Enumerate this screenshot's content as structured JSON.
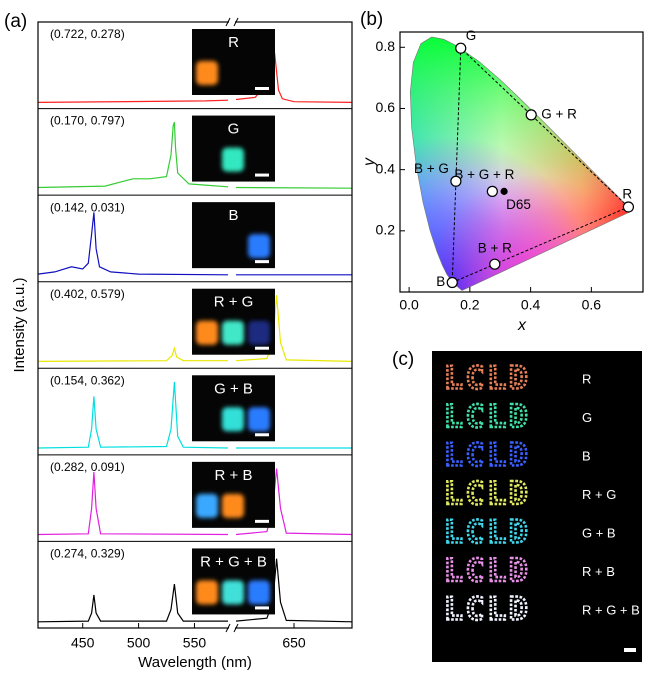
{
  "chart_data": [
    {
      "type": "stacked-spectra",
      "label": "(a)",
      "xlabel": "Wavelength (nm)",
      "ylabel": "Intensity (a.u.)",
      "xlim": [
        410,
        680
      ],
      "xbreak": [
        580,
        620
      ],
      "xticks": [
        450,
        500,
        550,
        650
      ],
      "ylim": [
        0,
        1
      ],
      "panels": [
        {
          "coords": "(0.722, 0.278)",
          "inset_label": "R",
          "color": "#ff2020",
          "inset_colors": [
            "#ff8a1a",
            null,
            null
          ],
          "x": [
            410,
            560,
            580,
            600,
            620,
            630,
            636,
            638,
            640,
            642,
            644,
            650,
            680
          ],
          "values": [
            0.03,
            0.05,
            0.06,
            null,
            0.07,
            0.1,
            0.3,
            0.95,
            0.7,
            0.2,
            0.08,
            0.04,
            0.03
          ]
        },
        {
          "coords": "(0.170, 0.797)",
          "inset_label": "G",
          "color": "#33cc33",
          "inset_colors": [
            null,
            "#30e8c0",
            null
          ],
          "x": [
            410,
            470,
            485,
            495,
            510,
            525,
            529,
            531,
            532,
            533,
            535,
            545,
            580,
            600,
            620,
            680
          ],
          "values": [
            0.05,
            0.07,
            0.13,
            0.17,
            0.17,
            0.2,
            0.5,
            0.9,
            0.95,
            0.6,
            0.25,
            0.1,
            0.06,
            null,
            0.05,
            0.04
          ]
        },
        {
          "coords": "(0.142, 0.031)",
          "inset_label": "B",
          "color": "#1010c0",
          "inset_colors": [
            null,
            null,
            "#2a7bff"
          ],
          "x": [
            410,
            425,
            440,
            450,
            455,
            458,
            460,
            462,
            465,
            475,
            500,
            580,
            600,
            620,
            680
          ],
          "values": [
            0.05,
            0.08,
            0.15,
            0.12,
            0.2,
            0.6,
            0.9,
            0.4,
            0.15,
            0.08,
            0.05,
            0.04,
            null,
            0.04,
            0.04
          ]
        },
        {
          "coords": "(0.402, 0.579)",
          "inset_label": "R + G",
          "color": "#e8e800",
          "inset_colors": [
            "#ff8a1a",
            "#40e8c8",
            "#1a2a80"
          ],
          "x": [
            410,
            525,
            530,
            532,
            534,
            540,
            580,
            600,
            620,
            636,
            639,
            641,
            643,
            646,
            680
          ],
          "values": [
            0.04,
            0.05,
            0.12,
            0.22,
            0.1,
            0.05,
            0.05,
            null,
            0.05,
            0.08,
            0.3,
            0.95,
            0.3,
            0.06,
            0.04
          ]
        },
        {
          "coords": "(0.154, 0.362)",
          "inset_label": "G + B",
          "color": "#00e0e0",
          "inset_colors": [
            null,
            "#30e0d8",
            "#2a7bff"
          ],
          "x": [
            410,
            455,
            458,
            460,
            462,
            466,
            525,
            529,
            532,
            535,
            540,
            580,
            600,
            620,
            680
          ],
          "values": [
            0.04,
            0.05,
            0.3,
            0.75,
            0.3,
            0.05,
            0.06,
            0.3,
            0.95,
            0.2,
            0.05,
            0.04,
            null,
            0.04,
            0.04
          ]
        },
        {
          "coords": "(0.282, 0.091)",
          "inset_label": "R + B",
          "color": "#e020e0",
          "inset_colors": [
            "#3aa8ff",
            "#ff8a1a",
            null
          ],
          "x": [
            410,
            455,
            458,
            460,
            462,
            466,
            580,
            600,
            620,
            636,
            639,
            641,
            643,
            646,
            680
          ],
          "values": [
            0.04,
            0.05,
            0.4,
            0.9,
            0.4,
            0.05,
            0.04,
            null,
            0.04,
            0.08,
            0.4,
            0.95,
            0.4,
            0.06,
            0.04
          ]
        },
        {
          "coords": "(0.274, 0.329)",
          "inset_label": "R + G + B",
          "color": "#000000",
          "inset_colors": [
            "#ff8a1a",
            "#40e0d8",
            "#2a7bff"
          ],
          "x": [
            410,
            455,
            458,
            460,
            462,
            466,
            525,
            529,
            532,
            535,
            540,
            580,
            600,
            620,
            636,
            639,
            641,
            643,
            646,
            680
          ],
          "values": [
            0.03,
            0.04,
            0.15,
            0.4,
            0.15,
            0.04,
            0.04,
            0.2,
            0.55,
            0.15,
            0.04,
            0.04,
            null,
            0.04,
            0.08,
            0.3,
            0.9,
            0.3,
            0.05,
            0.03
          ]
        }
      ]
    },
    {
      "type": "chromaticity",
      "label": "(b)",
      "xlabel": "x",
      "ylabel": "y",
      "xlim": [
        -0.03,
        0.77
      ],
      "ylim": [
        0,
        0.85
      ],
      "xticks": [
        {
          "value": 0,
          "label": "0.0"
        },
        0.2,
        0.4,
        0.6
      ],
      "yticks": [
        0.2,
        0.4,
        0.6,
        0.8
      ],
      "locus": {
        "x": [
          0.1741,
          0.144,
          0.1241,
          0.1096,
          0.0913,
          0.0687,
          0.0454,
          0.0235,
          0.0082,
          0.0039,
          0.0139,
          0.0389,
          0.0743,
          0.1142,
          0.1547,
          0.2296,
          0.3016,
          0.3731,
          0.4441,
          0.5125,
          0.5752,
          0.627,
          0.6915,
          0.719,
          0.7347
        ],
        "y": [
          0.005,
          0.0297,
          0.0578,
          0.0868,
          0.1327,
          0.2007,
          0.295,
          0.4127,
          0.5384,
          0.6548,
          0.7502,
          0.812,
          0.8338,
          0.8262,
          0.8059,
          0.7543,
          0.6923,
          0.6245,
          0.5547,
          0.4866,
          0.4242,
          0.3725,
          0.3083,
          0.2809,
          0.2653
        ]
      },
      "points": [
        {
          "name": "G",
          "x": 0.17,
          "y": 0.797
        },
        {
          "name": "G + R",
          "x": 0.402,
          "y": 0.579
        },
        {
          "name": "B + G + R",
          "x": 0.274,
          "y": 0.329
        },
        {
          "name": "D65",
          "x": 0.3127,
          "y": 0.329,
          "marker": "filled"
        },
        {
          "name": "B + G",
          "x": 0.154,
          "y": 0.362
        },
        {
          "name": "R",
          "x": 0.722,
          "y": 0.278
        },
        {
          "name": "B + R",
          "x": 0.282,
          "y": 0.091
        },
        {
          "name": "B",
          "x": 0.142,
          "y": 0.031
        }
      ]
    },
    {
      "type": "image",
      "label": "(c)",
      "text": "LCLD",
      "rows": [
        {
          "label": "R",
          "color": "#e88058"
        },
        {
          "label": "G",
          "color": "#40e0a8"
        },
        {
          "label": "B",
          "color": "#3a60ff"
        },
        {
          "label": "R + G",
          "color": "#e0e860"
        },
        {
          "label": "G + B",
          "color": "#40d8ec"
        },
        {
          "label": "R + B",
          "color": "#e890e8"
        },
        {
          "label": "R + G + B",
          "color": "#f0f4ff"
        }
      ]
    }
  ]
}
